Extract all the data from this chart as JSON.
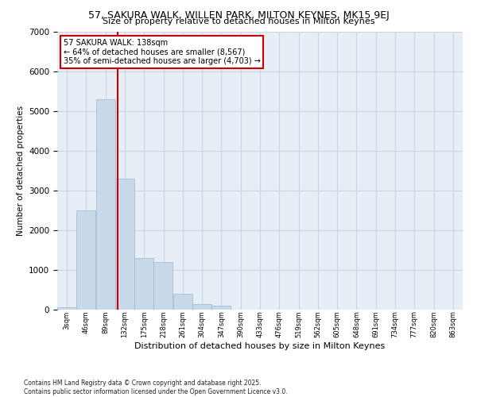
{
  "title1": "57, SAKURA WALK, WILLEN PARK, MILTON KEYNES, MK15 9EJ",
  "title2": "Size of property relative to detached houses in Milton Keynes",
  "xlabel": "Distribution of detached houses by size in Milton Keynes",
  "ylabel": "Number of detached properties",
  "annotation_line1": "57 SAKURA WALK: 138sqm",
  "annotation_line2": "← 64% of detached houses are smaller (8,567)",
  "annotation_line3": "35% of semi-detached houses are larger (4,703) →",
  "property_size": 138,
  "bar_color": "#c8d9ea",
  "bar_edge_color": "#9ab5cc",
  "vline_color": "#cc0000",
  "grid_color": "#ccd6e2",
  "bg_color": "#e8eef5",
  "categories": [
    "3sqm",
    "46sqm",
    "89sqm",
    "132sqm",
    "175sqm",
    "218sqm",
    "261sqm",
    "304sqm",
    "347sqm",
    "390sqm",
    "433sqm",
    "476sqm",
    "519sqm",
    "562sqm",
    "605sqm",
    "648sqm",
    "691sqm",
    "734sqm",
    "777sqm",
    "820sqm",
    "863sqm"
  ],
  "bin_starts": [
    3,
    46,
    89,
    132,
    175,
    218,
    261,
    304,
    347,
    390,
    433,
    476,
    519,
    562,
    605,
    648,
    691,
    734,
    777,
    820,
    863
  ],
  "bin_width": 43,
  "values": [
    55,
    2500,
    5300,
    3300,
    1300,
    1200,
    400,
    150,
    100,
    0,
    0,
    0,
    0,
    0,
    0,
    0,
    0,
    0,
    0,
    0,
    0
  ],
  "ylim": [
    0,
    7000
  ],
  "yticks": [
    0,
    1000,
    2000,
    3000,
    4000,
    5000,
    6000,
    7000
  ],
  "xlim_min": 3,
  "xlim_max": 906,
  "footer1": "Contains HM Land Registry data © Crown copyright and database right 2025.",
  "footer2": "Contains public sector information licensed under the Open Government Licence v3.0."
}
